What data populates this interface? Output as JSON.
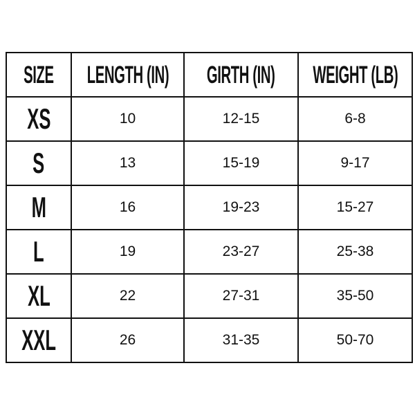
{
  "headers": [
    "SIZE",
    "LENGTH (IN)",
    "GIRTH (IN)",
    "WEIGHT (LB)"
  ],
  "rows": [
    {
      "size": "XS",
      "length": "10",
      "girth": "12-15",
      "weight": "6-8"
    },
    {
      "size": "S",
      "length": "13",
      "girth": "15-19",
      "weight": "9-17"
    },
    {
      "size": "M",
      "length": "16",
      "girth": "19-23",
      "weight": "15-27"
    },
    {
      "size": "L",
      "length": "19",
      "girth": "23-27",
      "weight": "25-38"
    },
    {
      "size": "XL",
      "length": "22",
      "girth": "27-31",
      "weight": "35-50"
    },
    {
      "size": "XXL",
      "length": "26",
      "girth": "31-35",
      "weight": "50-70"
    }
  ]
}
